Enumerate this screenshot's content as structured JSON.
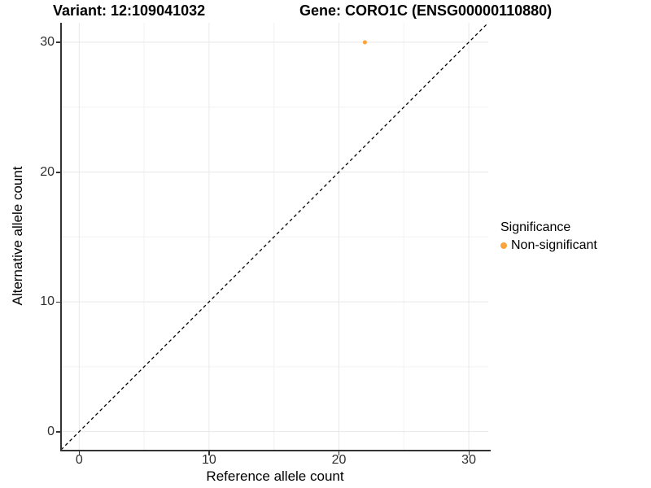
{
  "header": {
    "variant_title": "Variant: 12:109041032",
    "gene_title": "Gene: CORO1C (ENSG00000110880)"
  },
  "chart_data": {
    "type": "scatter",
    "xlabel": "Reference allele count",
    "ylabel": "Alternative allele count",
    "xlim": [
      -1.4,
      31.5
    ],
    "ylim": [
      -1.4,
      31.5
    ],
    "x_ticks": [
      0,
      10,
      20,
      30
    ],
    "y_ticks": [
      0,
      10,
      20,
      30
    ],
    "minor_ticks": [
      5,
      15,
      25
    ],
    "grid": "major and minor gridlines, light gray, on white background",
    "points": [
      {
        "x": 22,
        "y": 30,
        "series": "Non-significant"
      }
    ],
    "reference_line": {
      "equation": "y = x",
      "style": "dashed",
      "color": "#000000"
    },
    "legend": {
      "title": "Significance",
      "position": "right",
      "entries": [
        {
          "label": "Non-significant",
          "color": "#F9A43C"
        }
      ]
    },
    "colors": {
      "point": "#F9A43C",
      "axis": "#333333",
      "grid_major": "#E8E8E8",
      "grid_minor": "#F2F2F2",
      "background": "#FFFFFF"
    }
  }
}
